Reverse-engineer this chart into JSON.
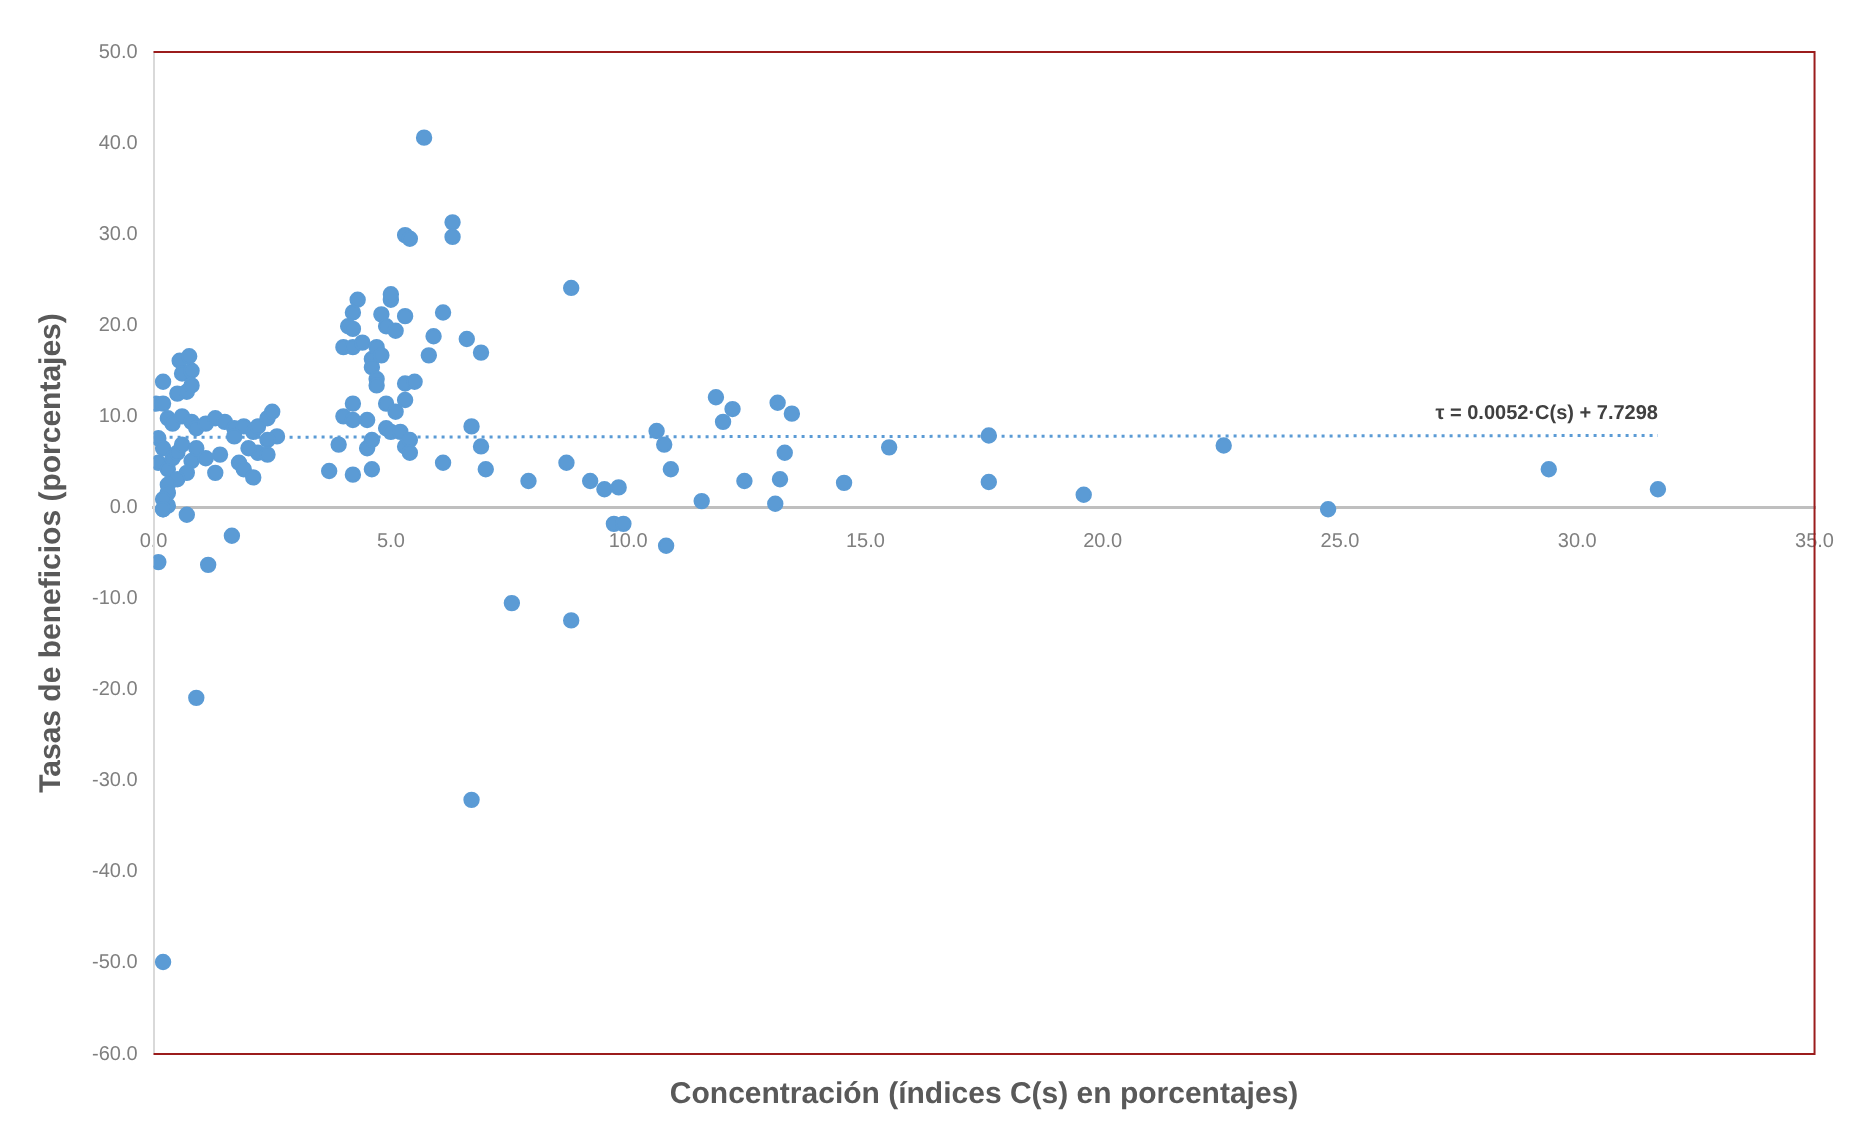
{
  "chart_data": {
    "type": "scatter",
    "xlabel": "Concentración (índices C(s) en porcentajes)",
    "ylabel": "Tasas de beneficios (porcentajes)",
    "xlim": [
      0,
      35
    ],
    "ylim": [
      -60,
      50
    ],
    "xticks": [
      {
        "value": 0,
        "label": "0.0"
      },
      {
        "value": 5,
        "label": "5.0"
      },
      {
        "value": 10,
        "label": "10.0"
      },
      {
        "value": 15,
        "label": "15.0"
      },
      {
        "value": 20,
        "label": "20.0"
      },
      {
        "value": 25,
        "label": "25.0"
      },
      {
        "value": 30,
        "label": "30.0"
      },
      {
        "value": 35,
        "label": "35.0"
      }
    ],
    "yticks": [
      {
        "value": -60,
        "label": "-60.0"
      },
      {
        "value": -50,
        "label": "-50.0"
      },
      {
        "value": -40,
        "label": "-40.0"
      },
      {
        "value": -30,
        "label": "-30.0"
      },
      {
        "value": -20,
        "label": "-20.0"
      },
      {
        "value": -10,
        "label": "-10.0"
      },
      {
        "value": 0,
        "label": "0.0"
      },
      {
        "value": 10,
        "label": "10.0"
      },
      {
        "value": 20,
        "label": "20.0"
      },
      {
        "value": 30,
        "label": "30.0"
      },
      {
        "value": 40,
        "label": "40.0"
      },
      {
        "value": 50,
        "label": "50.0"
      }
    ],
    "grid": false,
    "legend": false,
    "marker": "circle",
    "series": [
      {
        "type": "scatter",
        "color": "#5b9bd5",
        "x": [
          0.1,
          0.2,
          0.9,
          1.15,
          1.65,
          0.7,
          0.2,
          0.3,
          0.05,
          0.2,
          0.2,
          0.55,
          0.75,
          0.6,
          0.8,
          0.5,
          0.7,
          0.8,
          0.3,
          0.4,
          0.6,
          0.8,
          0.9,
          0.1,
          0.2,
          0.1,
          0.3,
          0.4,
          0.5,
          0.6,
          0.8,
          0.9,
          1.1,
          0.7,
          0.5,
          0.3,
          0.3,
          0.2,
          1.1,
          1.3,
          1.5,
          1.7,
          1.9,
          2.1,
          2.2,
          2.4,
          2.5,
          2.6,
          2.4,
          2.2,
          2.0,
          1.8,
          1.9,
          2.1,
          1.4,
          1.7,
          2.4,
          1.3,
          3.7,
          3.9,
          4.0,
          4.0,
          4.1,
          4.2,
          4.2,
          4.2,
          4.3,
          4.4,
          4.2,
          4.2,
          4.2,
          4.5,
          4.5,
          4.6,
          4.6,
          4.6,
          4.6,
          4.7,
          4.7,
          4.8,
          4.8,
          4.7,
          4.9,
          5.0,
          5.0,
          4.9,
          4.9,
          5.0,
          5.1,
          5.1,
          5.2,
          5.3,
          5.3,
          5.3,
          5.3,
          5.4,
          5.3,
          5.4,
          5.4,
          5.5,
          5.7,
          5.8,
          5.9,
          6.1,
          6.1,
          6.3,
          6.3,
          6.6,
          6.7,
          6.7,
          6.9,
          6.9,
          7.0,
          7.55,
          7.9,
          8.7,
          8.8,
          8.8,
          9.2,
          9.5,
          9.8,
          9.7,
          9.9,
          10.8,
          10.6,
          10.76,
          10.9,
          11.55,
          11.85,
          12.0,
          12.2,
          12.45,
          13.1,
          13.15,
          13.2,
          13.3,
          13.45,
          14.55,
          15.5,
          17.6,
          17.6,
          19.6,
          22.55,
          24.75,
          29.4,
          31.7,
          0.2
        ],
        "values": [
          -6.0,
          -49.9,
          -20.9,
          -6.3,
          -3.1,
          -0.8,
          -0.2,
          0.2,
          11.4,
          11.4,
          13.8,
          16.1,
          16.6,
          14.7,
          15.0,
          12.5,
          12.7,
          13.4,
          9.8,
          9.2,
          10.0,
          9.4,
          8.7,
          7.6,
          6.5,
          4.9,
          4.2,
          5.4,
          6.0,
          6.9,
          5.1,
          6.5,
          5.4,
          3.8,
          3.1,
          2.5,
          1.6,
          0.9,
          9.2,
          9.8,
          9.4,
          8.7,
          8.9,
          8.3,
          8.9,
          9.8,
          10.5,
          7.8,
          7.4,
          6.0,
          6.5,
          4.9,
          4.2,
          3.3,
          5.8,
          7.8,
          5.8,
          3.8,
          4.0,
          6.9,
          10.0,
          17.6,
          19.9,
          19.6,
          17.6,
          21.4,
          22.8,
          18.1,
          3.6,
          9.6,
          11.4,
          9.6,
          6.5,
          7.4,
          4.2,
          16.3,
          15.4,
          14.1,
          17.6,
          21.2,
          16.7,
          13.4,
          19.9,
          22.8,
          23.4,
          11.4,
          8.7,
          8.3,
          10.5,
          19.4,
          8.3,
          11.8,
          13.6,
          21.0,
          29.9,
          29.5,
          6.7,
          7.4,
          6.0,
          13.8,
          40.6,
          16.7,
          18.8,
          4.9,
          21.4,
          31.3,
          29.7,
          18.5,
          -32.1,
          8.9,
          6.7,
          17.0,
          4.2,
          -10.5,
          2.9,
          4.9,
          -12.4,
          24.1,
          2.9,
          2.0,
          2.2,
          -1.8,
          -1.8,
          -4.2,
          8.4,
          6.9,
          4.2,
          0.7,
          12.1,
          9.4,
          10.8,
          2.9,
          0.4,
          11.5,
          3.1,
          6.0,
          10.3,
          2.7,
          6.6,
          7.9,
          2.8,
          1.4,
          6.8,
          -0.2,
          4.2,
          2.0,
          -0.2
        ]
      },
      {
        "type": "line",
        "name": "τ = 0.0052·C(s) + 7.7298",
        "color": "#5b9bd5",
        "line_style": "dotted",
        "marker": "none",
        "x": [
          0,
          31.7
        ],
        "values": [
          7.7,
          7.9
        ]
      }
    ]
  }
}
